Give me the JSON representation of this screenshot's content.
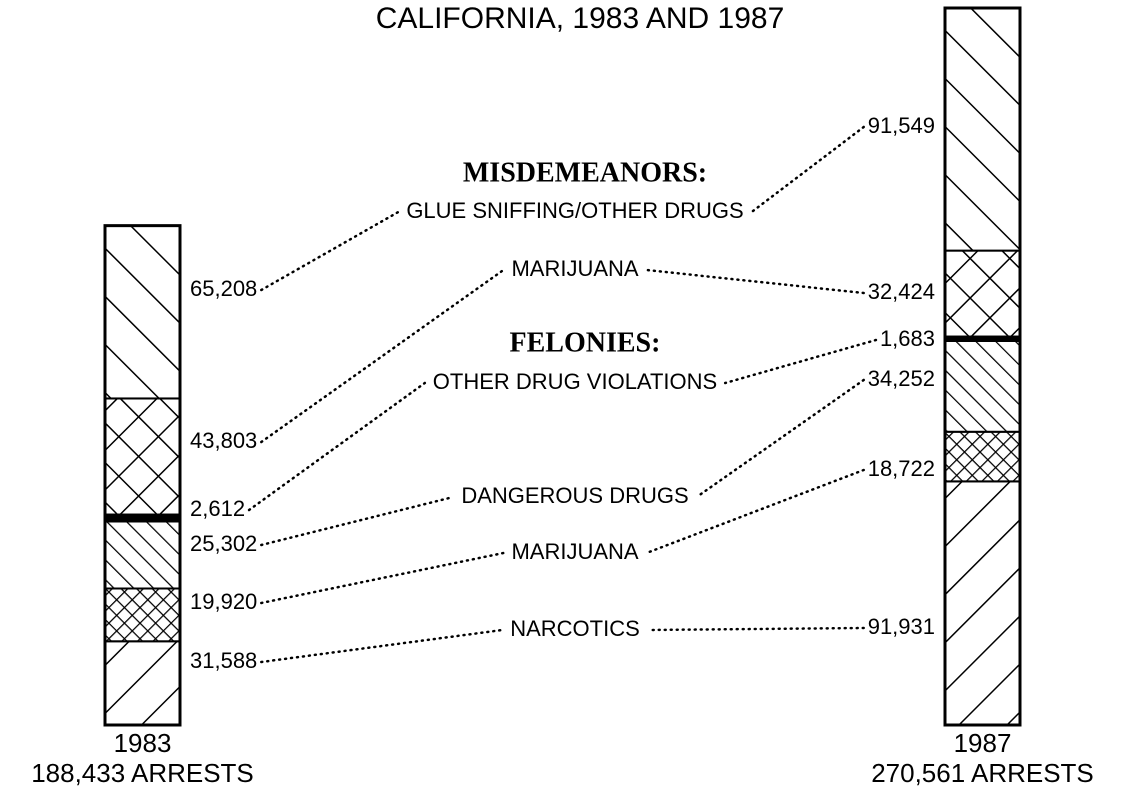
{
  "chart_data": {
    "type": "stacked-bar",
    "title": "CALIFORNIA, 1983 AND 1987",
    "categories": [
      "1983",
      "1987"
    ],
    "totals": [
      188433,
      270561
    ],
    "total_labels": [
      "188,433 ARRESTS",
      "270,561 ARRESTS"
    ],
    "groups": [
      {
        "name": "MISDEMEANORS:",
        "series": [
          5,
          4
        ]
      },
      {
        "name": "FELONIES:",
        "series": [
          3,
          2,
          1,
          0
        ]
      }
    ],
    "series": [
      {
        "name": "NARCOTICS",
        "color": "#000000",
        "pattern": "forward-wide",
        "values": [
          31588,
          91931
        ],
        "value_labels": [
          "31,588",
          "91,931"
        ]
      },
      {
        "name": "MARIJUANA",
        "color": "#000000",
        "pattern": "cross-fine",
        "values": [
          19920,
          18722
        ],
        "value_labels": [
          "19,920",
          "18,722"
        ]
      },
      {
        "name": "DANGEROUS DRUGS",
        "color": "#000000",
        "pattern": "back-narrow",
        "values": [
          25302,
          34252
        ],
        "value_labels": [
          "25,302",
          "34,252"
        ]
      },
      {
        "name": "OTHER DRUG VIOLATIONS",
        "color": "#000000",
        "pattern": "solid",
        "values": [
          2612,
          1683
        ],
        "value_labels": [
          "2,612",
          "1,683"
        ]
      },
      {
        "name": "MARIJUANA",
        "color": "#000000",
        "pattern": "cross-wide",
        "values": [
          43803,
          32424
        ],
        "value_labels": [
          "43,803",
          "32,424"
        ]
      },
      {
        "name": "GLUE SNIFFING/OTHER DRUGS",
        "color": "#000000",
        "pattern": "back-wide",
        "values": [
          65208,
          91549
        ],
        "value_labels": [
          "65,208",
          "91,549"
        ]
      }
    ]
  }
}
